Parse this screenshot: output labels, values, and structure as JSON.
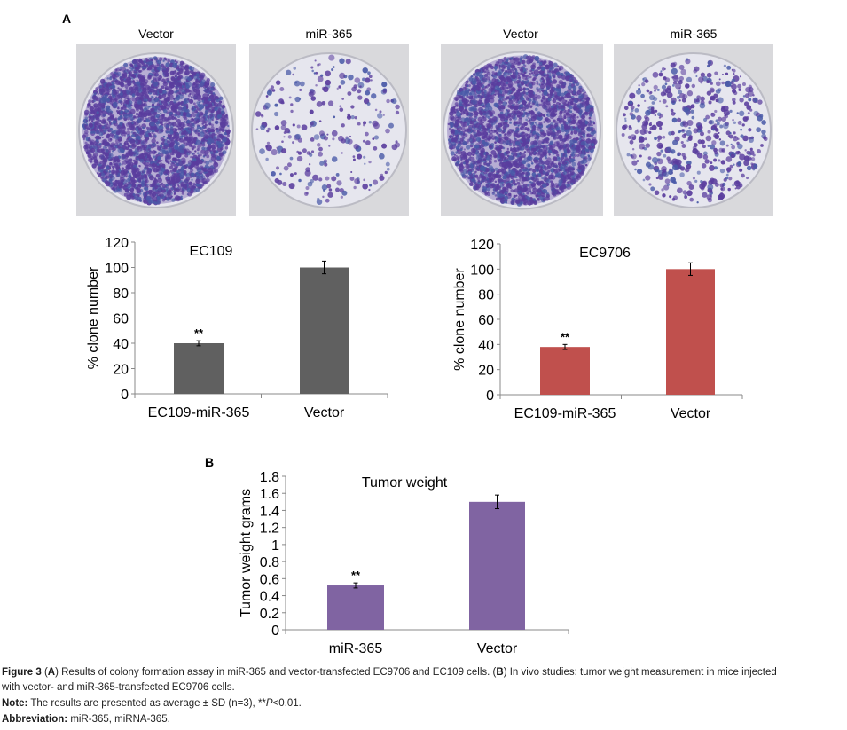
{
  "panel_a_label": "A",
  "panel_b_label": "B",
  "plates": [
    {
      "label": "Vector",
      "density": "high"
    },
    {
      "label": "miR-365",
      "density": "low"
    },
    {
      "label": "Vector",
      "density": "high"
    },
    {
      "label": "miR-365",
      "density": "medium"
    }
  ],
  "colors": {
    "ec109": "#606060",
    "ec9706": "#c0504d",
    "tumor": "#8064a2",
    "stain": "#5a3d9e"
  },
  "chart_data": [
    {
      "type": "bar",
      "title": "EC109",
      "ylabel": "% clone number",
      "xlabel": "",
      "categories": [
        "EC109-miR-365",
        "Vector"
      ],
      "values": [
        40,
        100
      ],
      "errors": [
        2,
        5
      ],
      "annotations": [
        "**",
        ""
      ],
      "ylim": [
        0,
        120
      ],
      "yticks": [
        "0",
        "20",
        "40",
        "60",
        "80",
        "100",
        "120"
      ],
      "grid": false,
      "color": "#606060"
    },
    {
      "type": "bar",
      "title": "EC9706",
      "ylabel": "% clone number",
      "xlabel": "",
      "categories": [
        "EC109-miR-365",
        "Vector"
      ],
      "values": [
        38,
        100
      ],
      "errors": [
        2,
        5
      ],
      "annotations": [
        "**",
        ""
      ],
      "ylim": [
        0,
        120
      ],
      "yticks": [
        "0",
        "20",
        "40",
        "60",
        "80",
        "100",
        "120"
      ],
      "grid": false,
      "color": "#c0504d"
    },
    {
      "type": "bar",
      "title": "Tumor weight",
      "ylabel": "Tumor weight grams",
      "xlabel": "",
      "categories": [
        "miR-365",
        "Vector"
      ],
      "values": [
        0.52,
        1.5
      ],
      "errors": [
        0.03,
        0.08
      ],
      "annotations": [
        "**",
        ""
      ],
      "ylim": [
        0,
        1.8
      ],
      "yticks": [
        "0",
        "0.2",
        "0.4",
        "0.6",
        "0.8",
        "1",
        "1.2",
        "1.4",
        "1.6",
        "1.8"
      ],
      "grid": false,
      "color": "#8064a2"
    }
  ],
  "caption": {
    "fig_label": "Figure 3",
    "line1_a": "(",
    "a": "A",
    "line1_b": ") Results of colony formation assay in miR-365 and vector-transfected EC9706 and EC109 cells. (",
    "b": "B",
    "line1_c": ") In vivo studies: tumor weight measurement in mice injected",
    "line2": "with vector- and miR-365-transfected EC9706 cells.",
    "note_label": "Note:",
    "note_text_1": " The results are presented as average ± SD (n=3), **",
    "note_p": "P",
    "note_text_2": "<0.01.",
    "abbr_label": "Abbreviation:",
    "abbr_text": " miR-365, miRNA-365."
  }
}
